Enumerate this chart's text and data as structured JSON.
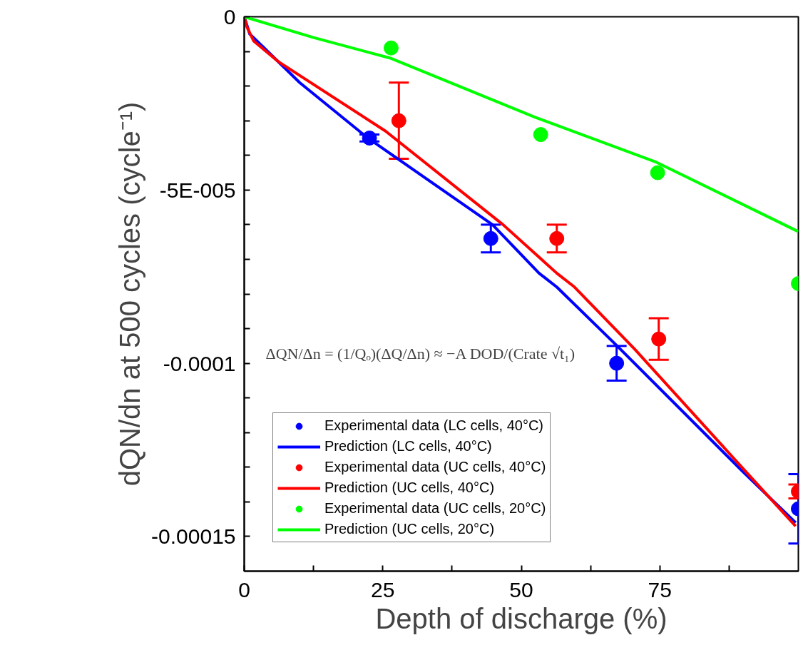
{
  "chart_data": {
    "type": "scatter",
    "xlabel": "Depth of discharge (%)",
    "ylabel": "dQN/dn at 500 cycles (cycle⁻¹)",
    "xlim": [
      0,
      100
    ],
    "ylim": [
      -0.00016,
      0
    ],
    "xticks": [
      0,
      {
        "value": 12.5,
        "label": null
      },
      25,
      {
        "value": 37.5,
        "label": null
      },
      50,
      {
        "value": 62.5,
        "label": null
      },
      75,
      {
        "value": 87.5,
        "label": null
      }
    ],
    "yticks": [
      0,
      {
        "value": -1e-05,
        "label": null
      },
      {
        "value": -2e-05,
        "label": null
      },
      {
        "value": -3e-05,
        "label": null
      },
      {
        "value": -4e-05,
        "label": null
      },
      {
        "value": -5e-05,
        "label": "-5E-005"
      },
      {
        "value": -6e-05,
        "label": null
      },
      {
        "value": -7e-05,
        "label": null
      },
      {
        "value": -8e-05,
        "label": null
      },
      {
        "value": -9e-05,
        "label": null
      },
      -0.0001,
      {
        "value": -0.00011,
        "label": null
      },
      {
        "value": -0.00012,
        "label": null
      },
      {
        "value": -0.00013,
        "label": null
      },
      {
        "value": -0.00014,
        "label": null
      },
      -0.00015
    ],
    "grid": false,
    "legend": "bottom left",
    "annotations": [
      "ΔQN/Δn = (1/Qₒ)(ΔQ/Δn) ≈ −A DOD/(Crate √t₁)"
    ],
    "series": [
      {
        "name": "Experimental data (LC cells, 40°C)",
        "marker": "circle",
        "color": "#0000ff",
        "x": [
          22.6,
          44.5,
          67.2,
          100
        ],
        "values": [
          -3.5e-05,
          -6.4e-05,
          -0.0001,
          -0.000142
        ],
        "errors": [
          1e-06,
          4e-06,
          5e-06,
          1e-05
        ]
      },
      {
        "name": "Prediction (LC cells, 40°C)",
        "type": "line",
        "color": "#0000ff",
        "x": [
          0,
          1,
          3.6,
          10,
          22.3,
          44.8,
          53.2,
          56.4,
          67.3,
          89.8,
          99.5
        ],
        "values": [
          0,
          -5e-06,
          -9e-06,
          -1.9e-05,
          -3.5e-05,
          -6e-05,
          -7.4e-05,
          -7.8e-05,
          -9.5e-05,
          -0.000131,
          -0.000146
        ]
      },
      {
        "name": "Experimental data (UC cells, 40°C)",
        "marker": "circle",
        "color": "#ff0000",
        "x": [
          27.9,
          56.4,
          74.8,
          100
        ],
        "values": [
          -3e-05,
          -6.4e-05,
          -9.3e-05,
          -0.000137
        ],
        "errors": [
          1.1e-05,
          4e-06,
          6e-06,
          2e-06
        ]
      },
      {
        "name": "Prediction (UC cells, 40°C)",
        "type": "line",
        "color": "#ff0000",
        "x": [
          0,
          0.5,
          1.7,
          6.2,
          25.5,
          46.7,
          56.4,
          59.6,
          70.5,
          89.8,
          99.5
        ],
        "values": [
          0,
          -3e-06,
          -7e-06,
          -1.3e-05,
          -3.3e-05,
          -6e-05,
          -7.4e-05,
          -7.8e-05,
          -9.6e-05,
          -0.00013,
          -0.000147
        ]
      },
      {
        "name": "Experimental data (UC cells, 20°C)",
        "marker": "circle",
        "color": "#00ff00",
        "x": [
          26.5,
          53.5,
          74.6,
          100
        ],
        "values": [
          -9e-06,
          -3.4e-05,
          -4.5e-05,
          -7.7e-05
        ]
      },
      {
        "name": "Prediction (UC cells, 20°C)",
        "type": "line",
        "color": "#00ff00",
        "x": [
          0,
          12.5,
          26.5,
          52.5,
          74.4,
          100
        ],
        "values": [
          0,
          -6e-06,
          -1.2e-05,
          -2.9e-05,
          -4.2e-05,
          -6.2e-05
        ]
      }
    ]
  }
}
